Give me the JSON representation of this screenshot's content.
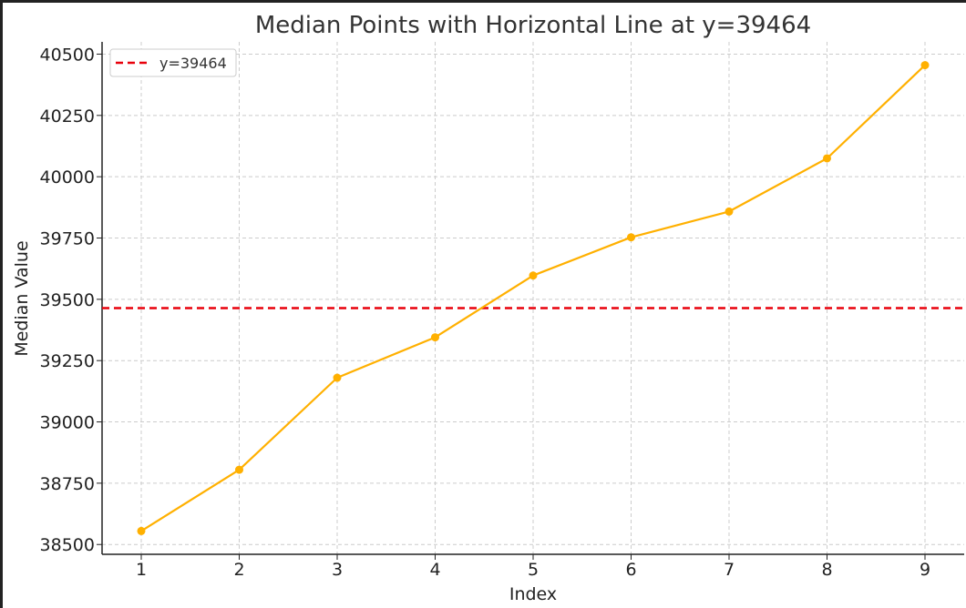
{
  "chart_data": {
    "type": "line",
    "title": "Median Points with Horizontal Line at y=39464",
    "xlabel": "Index",
    "ylabel": "Median Value",
    "x": [
      1,
      2,
      3,
      4,
      5,
      6,
      7,
      8,
      9
    ],
    "series": [
      {
        "values": [
          38555,
          38805,
          39180,
          39345,
          39597,
          39753,
          39858,
          40075,
          40455
        ],
        "color": "#FFB000",
        "marker": "circle"
      }
    ],
    "hline": {
      "y": 39464,
      "label": "y=39464",
      "color": "#E8000B",
      "style": "dashed"
    },
    "xticks": [
      "1",
      "2",
      "3",
      "4",
      "5",
      "6",
      "7",
      "8",
      "9"
    ],
    "yticks": [
      "38500",
      "38750",
      "39000",
      "39250",
      "39500",
      "39750",
      "40000",
      "40250",
      "40500"
    ],
    "xlim": [
      0.6,
      9.4
    ],
    "ylim": [
      38460,
      40550
    ],
    "grid": true,
    "legend_position": "top-left"
  }
}
